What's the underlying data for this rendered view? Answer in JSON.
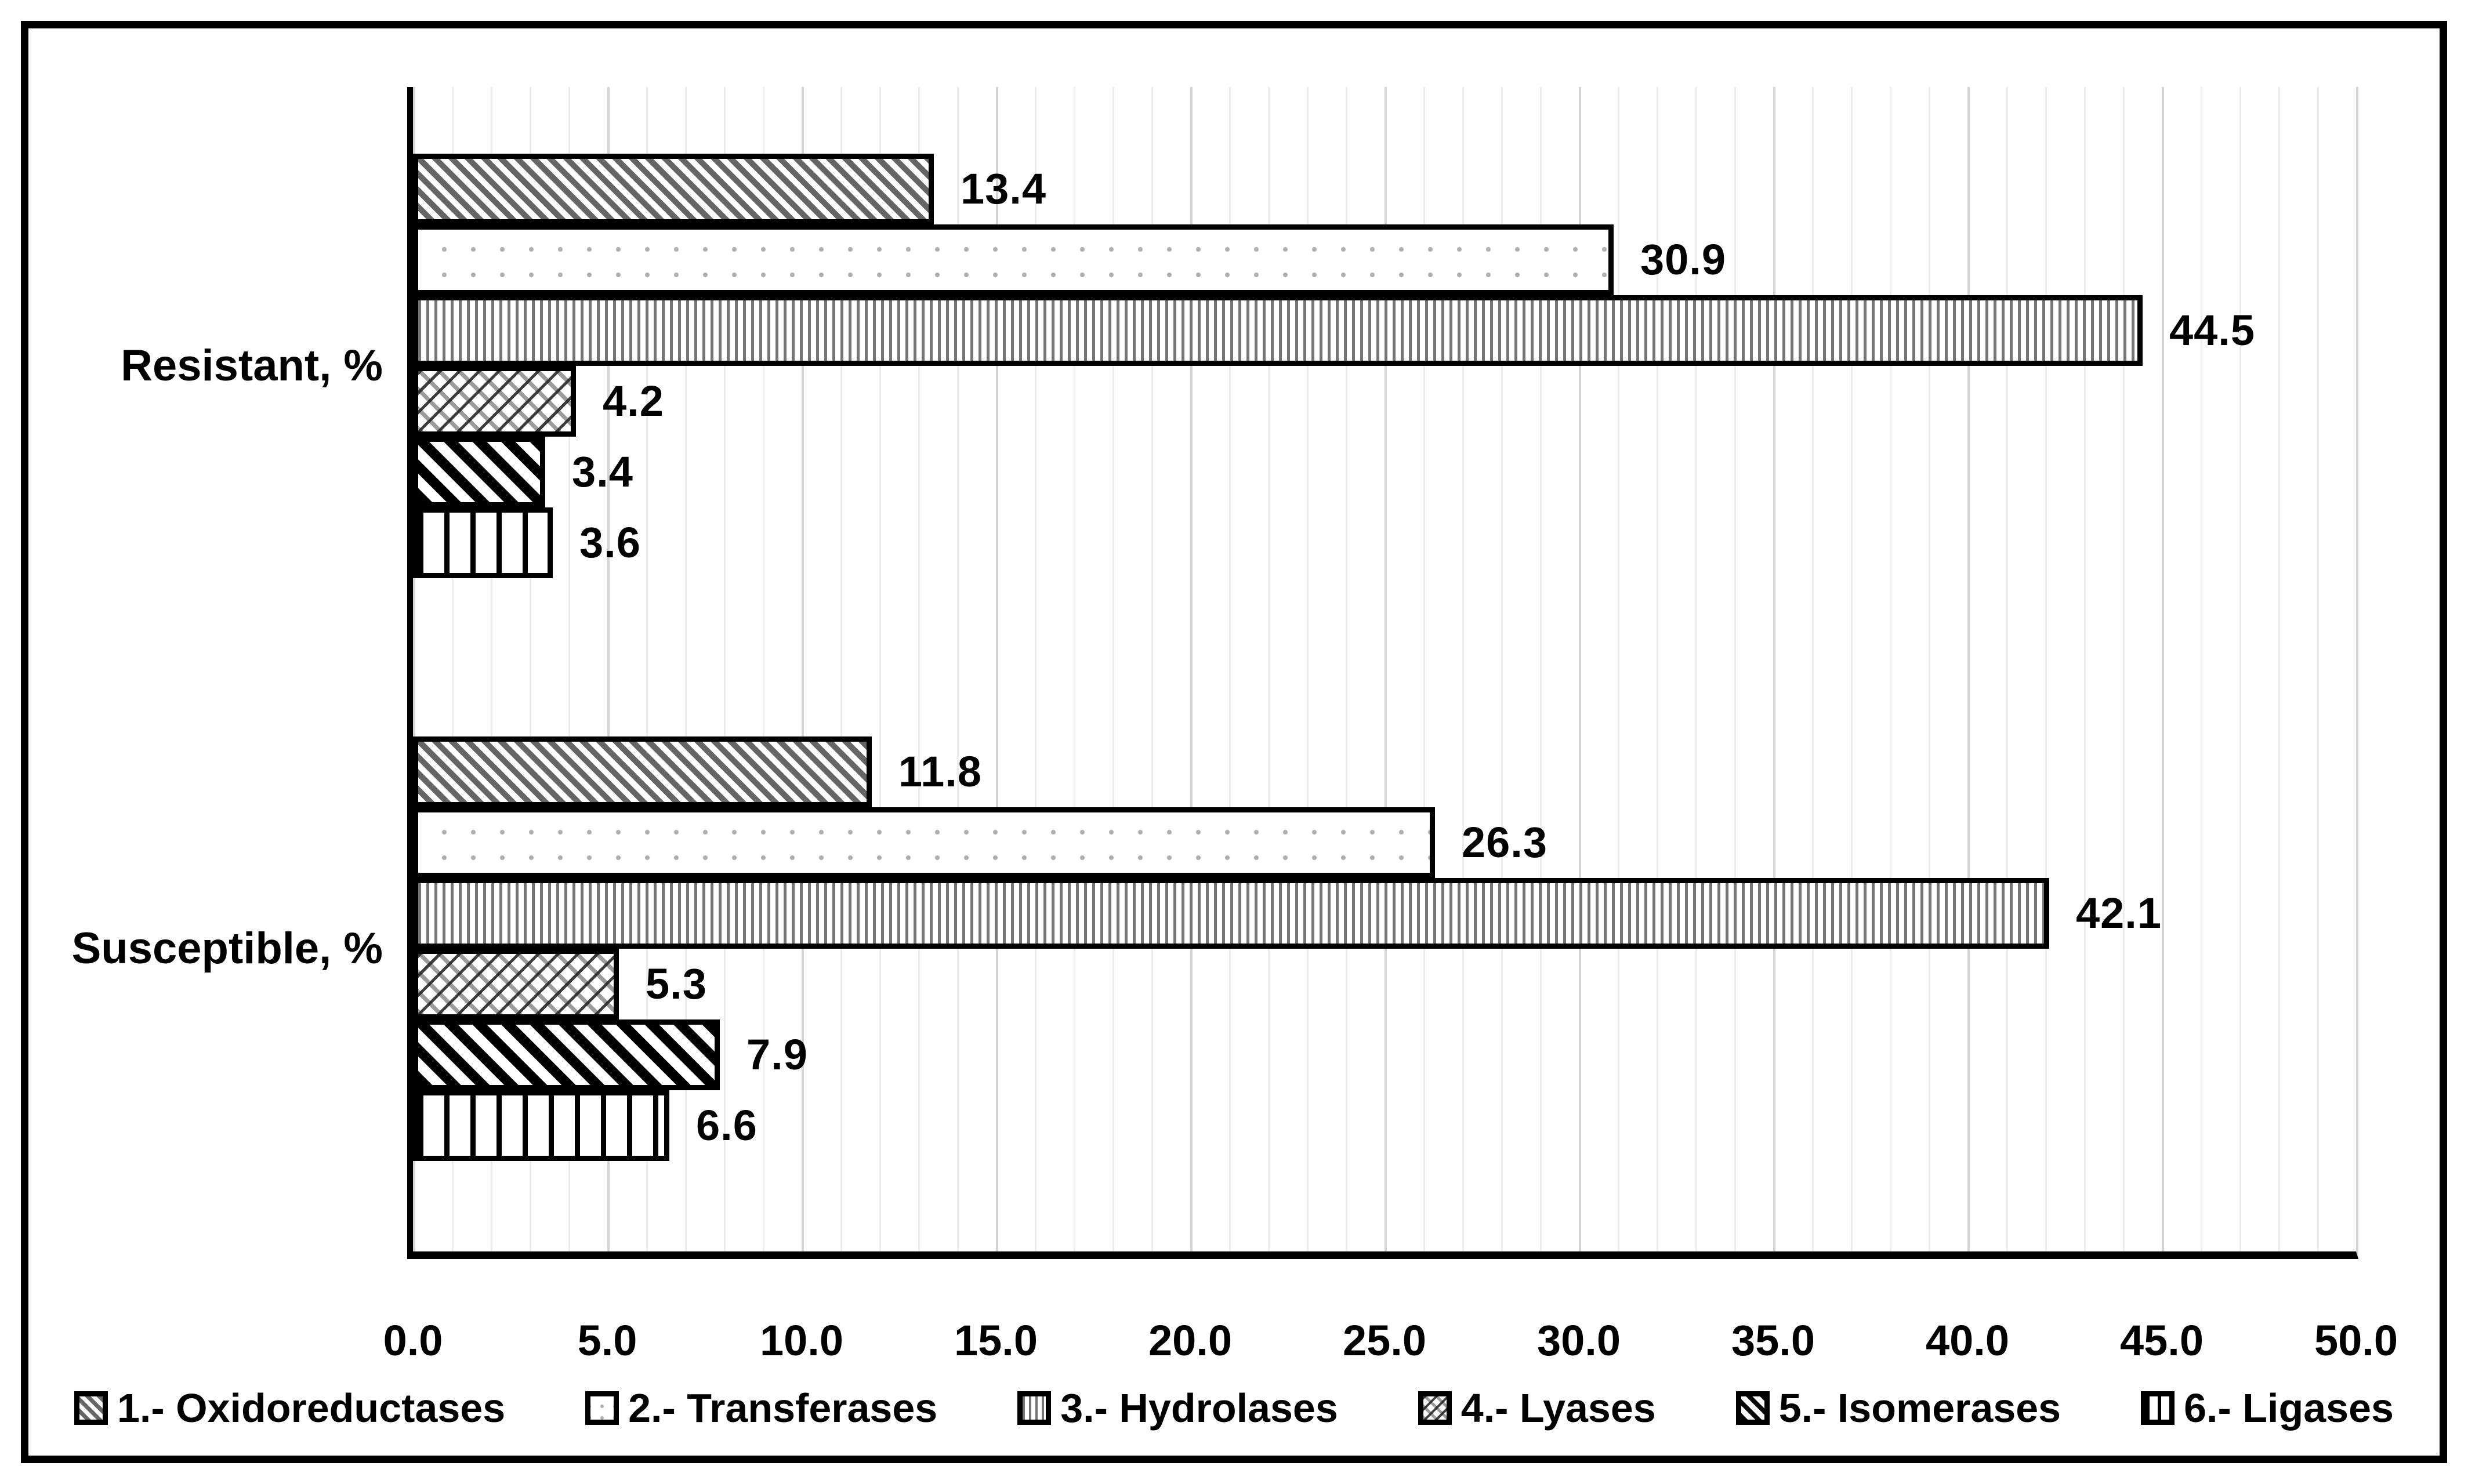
{
  "chart_data": {
    "type": "bar",
    "orientation": "horizontal",
    "title": "",
    "categories": [
      "Resistant, %",
      "Susceptible, %"
    ],
    "series": [
      {
        "name": "1.- Oxidoreductases",
        "pattern": "gray-wide-downward-diagonal",
        "values": [
          13.4,
          11.8
        ]
      },
      {
        "name": "2.- Transferases",
        "pattern": "sparse-light-dots",
        "values": [
          30.9,
          26.3
        ]
      },
      {
        "name": "3.- Hydrolases",
        "pattern": "dense-vertical-stripes",
        "values": [
          44.5,
          42.1
        ]
      },
      {
        "name": "4.- Lyases",
        "pattern": "diagonal-shingle-crosshatch",
        "values": [
          4.2,
          5.3
        ]
      },
      {
        "name": "5.- Isomerases",
        "pattern": "black-wide-downward-diagonal",
        "values": [
          3.4,
          7.9
        ]
      },
      {
        "name": "6.- Ligases",
        "pattern": "sparse-vertical-lines",
        "values": [
          3.6,
          6.6
        ]
      }
    ],
    "value_labels": [
      "13.4",
      "30.9",
      "44.5",
      "4.2",
      "3.4",
      "3.6",
      "11.8",
      "26.3",
      "42.1",
      "5.3",
      "7.9",
      "6.6"
    ],
    "xlabel": "",
    "ylabel": "",
    "xlim": [
      0,
      50
    ],
    "xtick_labels": [
      "0.0",
      "5.0",
      "10.0",
      "15.0",
      "20.0",
      "25.0",
      "30.0",
      "35.0",
      "40.0",
      "45.0",
      "50.0"
    ],
    "grid": {
      "vertical_minor_step": 1,
      "vertical_major_step": 5,
      "horizontal": false
    },
    "legend_position": "bottom",
    "colors": {
      "background": "#ffffff",
      "bar_border": "#000000",
      "text": "#000000",
      "minor_grid": "#ececec",
      "major_grid": "#d4d4d4",
      "gray_stripe": "#656565",
      "dot_gray": "#aeaeae",
      "vertical_stripe_gray": "#757575"
    }
  }
}
